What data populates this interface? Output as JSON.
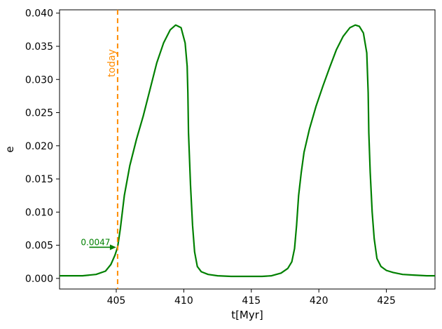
{
  "chart_data": {
    "type": "line",
    "title": "",
    "xlabel": "t[Myr]",
    "ylabel": "e",
    "xlim": [
      400.8,
      428.6
    ],
    "ylim": [
      -0.0016,
      0.0405
    ],
    "xticks": [
      405,
      410,
      415,
      420,
      425
    ],
    "xtick_labels": [
      "405",
      "410",
      "415",
      "420",
      "425"
    ],
    "yticks": [
      0.0,
      0.005,
      0.01,
      0.015,
      0.02,
      0.025,
      0.03,
      0.035,
      0.04
    ],
    "ytick_labels": [
      "0.000",
      "0.005",
      "0.010",
      "0.015",
      "0.020",
      "0.025",
      "0.030",
      "0.035",
      "0.040"
    ],
    "grid": false,
    "colors": {
      "series": "#008000",
      "today_line": "#ff8c00"
    },
    "series": [
      {
        "x": [
          400.8,
          401.5,
          402.5,
          403.5,
          404.2,
          404.6,
          404.9,
          405.1,
          405.3,
          405.6,
          406.0,
          406.5,
          407.0,
          407.5,
          408.0,
          408.5,
          409.0,
          409.4,
          409.8,
          410.1,
          410.25,
          410.3,
          410.35,
          410.5,
          410.65,
          410.8,
          411.0,
          411.3,
          411.8,
          412.5,
          413.5,
          414.5,
          415.2,
          415.8,
          416.5,
          417.2,
          417.7,
          418.0,
          418.2,
          418.35,
          418.5,
          418.7,
          418.9,
          419.3,
          419.8,
          420.3,
          420.8,
          421.3,
          421.8,
          422.3,
          422.7,
          423.0,
          423.3,
          423.55,
          423.65,
          423.7,
          423.8,
          423.95,
          424.1,
          424.3,
          424.6,
          425.0,
          425.5,
          426.2,
          427.0,
          428.0,
          428.6
        ],
        "y": [
          0.0004,
          0.0004,
          0.0004,
          0.0006,
          0.0011,
          0.0021,
          0.0035,
          0.0047,
          0.0075,
          0.0125,
          0.017,
          0.021,
          0.0245,
          0.0285,
          0.0325,
          0.0355,
          0.0375,
          0.0382,
          0.0378,
          0.0355,
          0.032,
          0.028,
          0.022,
          0.014,
          0.008,
          0.004,
          0.0018,
          0.001,
          0.0006,
          0.0004,
          0.0003,
          0.0003,
          0.0003,
          0.0003,
          0.0004,
          0.0008,
          0.0015,
          0.0025,
          0.0045,
          0.008,
          0.0125,
          0.016,
          0.019,
          0.0225,
          0.026,
          0.029,
          0.0318,
          0.0345,
          0.0365,
          0.0378,
          0.0382,
          0.038,
          0.037,
          0.034,
          0.028,
          0.022,
          0.016,
          0.01,
          0.006,
          0.003,
          0.0018,
          0.0012,
          0.0009,
          0.0006,
          0.0005,
          0.0004,
          0.0004
        ]
      }
    ],
    "vline": {
      "x": 405.1,
      "label": "today"
    },
    "annotation": {
      "text": "0.0047",
      "x": 405.1,
      "y": 0.0047,
      "text_x": 403.0
    }
  }
}
